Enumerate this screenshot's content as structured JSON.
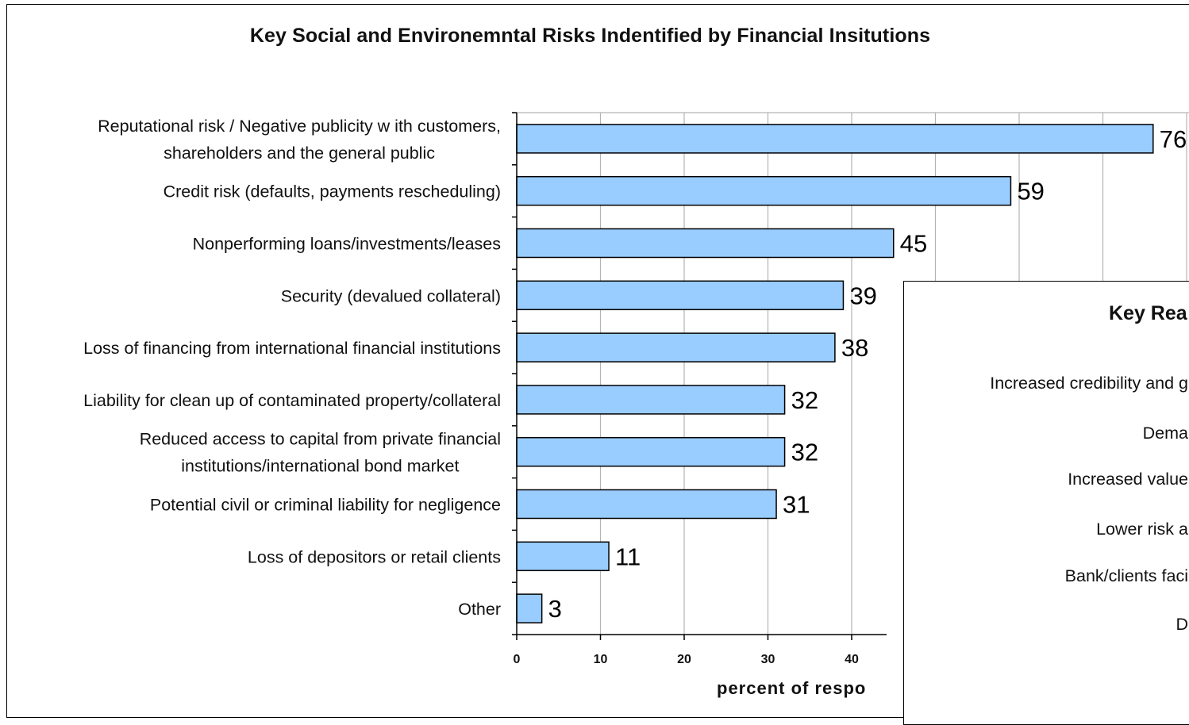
{
  "chart_data": [
    {
      "type": "bar",
      "orientation": "horizontal",
      "title": "Key Social and Environemntal Risks Indentified by Financial Insitutions",
      "categories": [
        [
          "Reputational risk / Negative publicity w ith customers,",
          "shareholders and the general public"
        ],
        [
          "Credit risk (defaults,  payments rescheduling)"
        ],
        [
          "Nonperforming loans/investments/leases"
        ],
        [
          "Security (devalued collateral)"
        ],
        [
          "Loss of financing from international financial institutions"
        ],
        [
          "Liability for clean up of contaminated property/collateral"
        ],
        [
          "Reduced access to capital from private financial",
          "institutions/international bond market"
        ],
        [
          "Potential civil or criminal liability for negligence"
        ],
        [
          "Loss of depositors or retail clients"
        ],
        [
          "Other"
        ]
      ],
      "values": [
        76,
        59,
        45,
        39,
        38,
        32,
        32,
        31,
        11,
        3
      ],
      "value_labels": [
        "76",
        "59",
        "45",
        "39",
        "38",
        "32",
        "32",
        "31",
        "11",
        "3"
      ],
      "xlabel": "percent of respo",
      "xticks": [
        "0",
        "10",
        "20",
        "30",
        "40"
      ],
      "xlim": [
        0,
        80
      ],
      "grid": true,
      "bar_color": "#99ccff",
      "bar_edge_color": "#000000"
    },
    {
      "type": "bar",
      "orientation": "horizontal",
      "partially_visible": true,
      "title": "Key Rea",
      "categories": [
        "Increased credibility and g",
        "Dema",
        "Increased value",
        "Lower risk a",
        "Bank/clients faci",
        "D"
      ]
    }
  ],
  "colors": {
    "background": "#ffffff",
    "bar_fill": "#99ccff",
    "bar_stroke": "#000000",
    "gridline": "#b3b3b3",
    "text": "#111111"
  }
}
